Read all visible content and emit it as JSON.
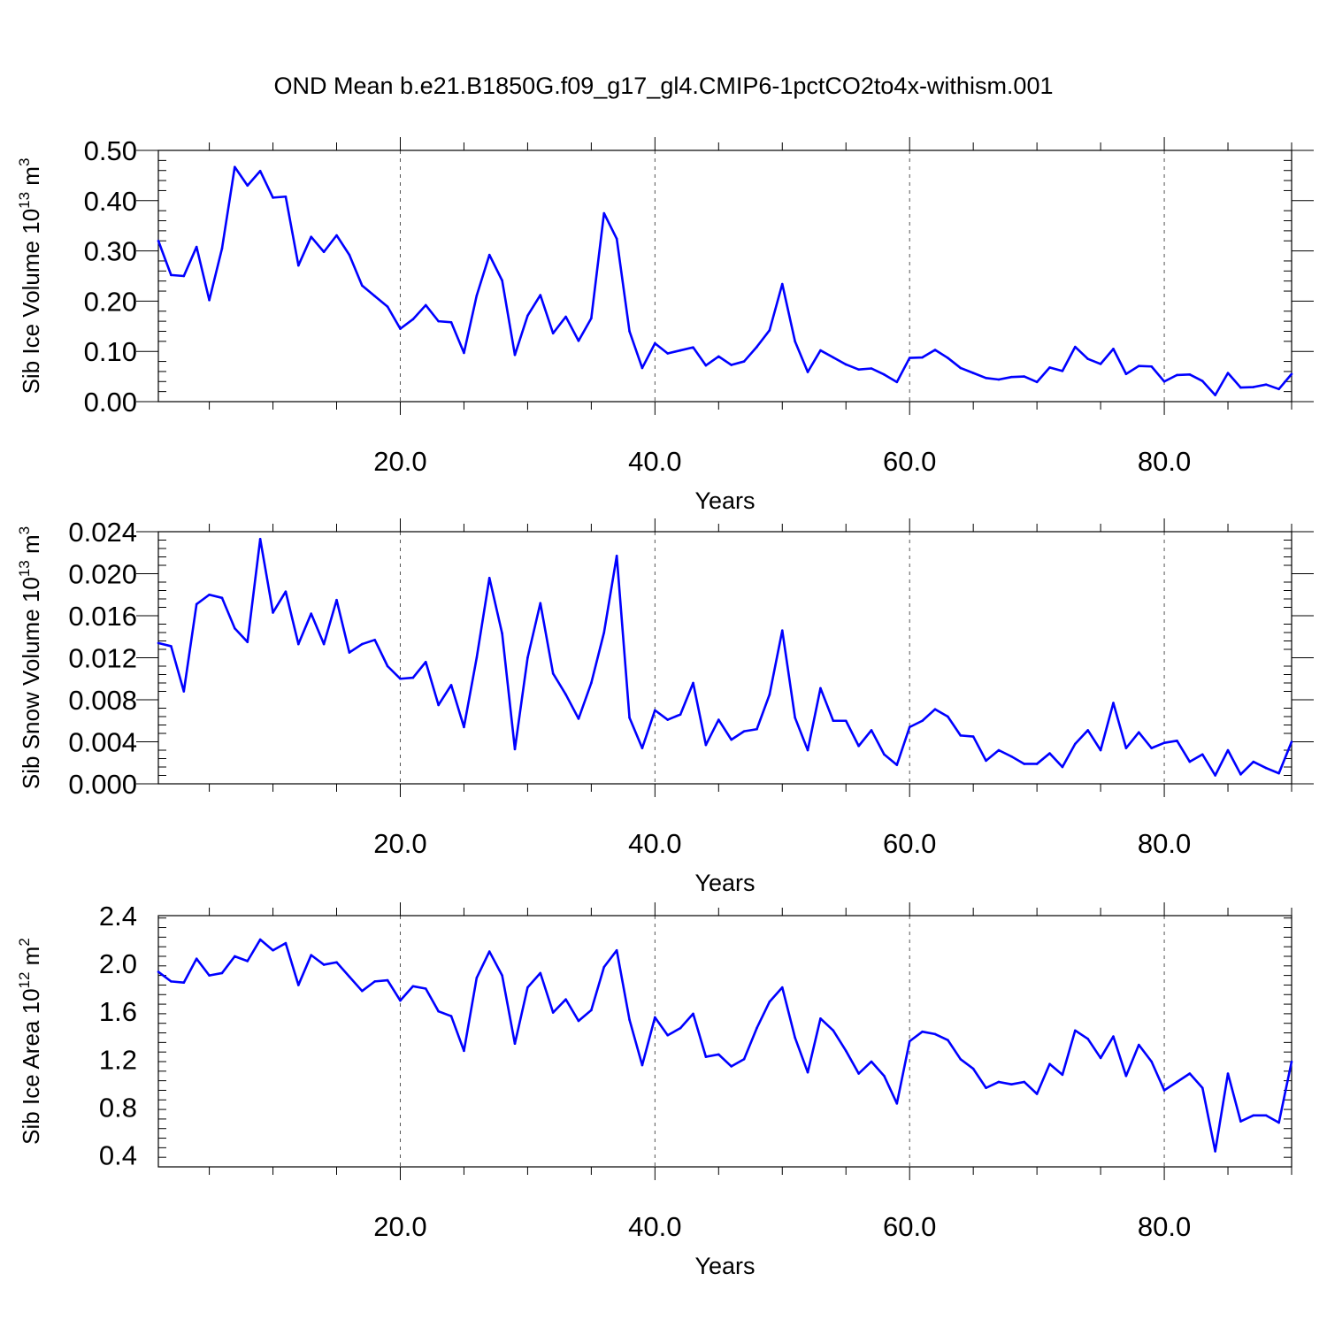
{
  "figure": {
    "title": "OND Mean b.e21.B1850G.f09_g17_gl4.CMIP6-1pctCO2to4x-withism.001"
  },
  "colors": {
    "line": "#0000ff",
    "axis": "#000000",
    "grid": "#555555"
  },
  "chart_data": [
    {
      "type": "line",
      "ylabel": {
        "main": "Sib Ice Volume 10",
        "exp": "13",
        "unit": " m",
        "unit_exp": "3"
      },
      "xlabel": "Years",
      "xlim": [
        1,
        90
      ],
      "ylim": [
        0,
        0.5
      ],
      "yticks": [
        0,
        0.1,
        0.2,
        0.3,
        0.4,
        0.5
      ],
      "ytick_labels": [
        "0.00",
        "0.10",
        "0.20",
        "0.30",
        "0.40",
        "0.50"
      ],
      "xticks": [
        20,
        40,
        60,
        80
      ],
      "xtick_labels": [
        "20.0",
        "40.0",
        "60.0",
        "80.0"
      ],
      "grid": "dashed vertical at major x ticks",
      "x": [
        1,
        2,
        3,
        4,
        5,
        6,
        7,
        8,
        9,
        10,
        11,
        12,
        13,
        14,
        15,
        16,
        17,
        18,
        19,
        20,
        21,
        22,
        23,
        24,
        25,
        26,
        27,
        28,
        29,
        30,
        31,
        32,
        33,
        34,
        35,
        36,
        37,
        38,
        39,
        40,
        41,
        42,
        43,
        44,
        45,
        46,
        47,
        48,
        49,
        50,
        51,
        52,
        53,
        54,
        55,
        56,
        57,
        58,
        59,
        60,
        61,
        62,
        63,
        64,
        65,
        66,
        67,
        68,
        69,
        70,
        71,
        72,
        73,
        74,
        75,
        76,
        77,
        78,
        79,
        80,
        81,
        82,
        83,
        84,
        85,
        86,
        87,
        88,
        89,
        90
      ],
      "values": [
        0.32,
        0.252,
        0.25,
        0.308,
        0.202,
        0.305,
        0.467,
        0.43,
        0.459,
        0.406,
        0.408,
        0.271,
        0.328,
        0.298,
        0.331,
        0.292,
        0.231,
        0.21,
        0.189,
        0.145,
        0.164,
        0.192,
        0.16,
        0.158,
        0.097,
        0.211,
        0.292,
        0.241,
        0.093,
        0.171,
        0.212,
        0.136,
        0.169,
        0.121,
        0.166,
        0.375,
        0.324,
        0.14,
        0.067,
        0.116,
        0.096,
        0.102,
        0.108,
        0.072,
        0.09,
        0.073,
        0.08,
        0.109,
        0.142,
        0.234,
        0.12,
        0.059,
        0.102,
        0.088,
        0.074,
        0.064,
        0.066,
        0.054,
        0.039,
        0.087,
        0.088,
        0.103,
        0.087,
        0.067,
        0.057,
        0.047,
        0.044,
        0.049,
        0.05,
        0.039,
        0.068,
        0.061,
        0.109,
        0.085,
        0.075,
        0.105,
        0.055,
        0.071,
        0.07,
        0.04,
        0.053,
        0.054,
        0.041,
        0.013,
        0.057,
        0.028,
        0.029,
        0.034,
        0.025,
        0.055
      ]
    },
    {
      "type": "line",
      "ylabel": {
        "main": "Sib Snow Volume 10",
        "exp": "13",
        "unit": " m",
        "unit_exp": "3"
      },
      "xlabel": "Years",
      "xlim": [
        1,
        90
      ],
      "ylim": [
        0,
        0.024
      ],
      "yticks": [
        0,
        0.004,
        0.008,
        0.012,
        0.016,
        0.02,
        0.024
      ],
      "ytick_labels": [
        "0.000",
        "0.004",
        "0.008",
        "0.012",
        "0.016",
        "0.020",
        "0.024"
      ],
      "xticks": [
        20,
        40,
        60,
        80
      ],
      "xtick_labels": [
        "20.0",
        "40.0",
        "60.0",
        "80.0"
      ],
      "grid": "dashed vertical at major x ticks",
      "x": [
        1,
        2,
        3,
        4,
        5,
        6,
        7,
        8,
        9,
        10,
        11,
        12,
        13,
        14,
        15,
        16,
        17,
        18,
        19,
        20,
        21,
        22,
        23,
        24,
        25,
        26,
        27,
        28,
        29,
        30,
        31,
        32,
        33,
        34,
        35,
        36,
        37,
        38,
        39,
        40,
        41,
        42,
        43,
        44,
        45,
        46,
        47,
        48,
        49,
        50,
        51,
        52,
        53,
        54,
        55,
        56,
        57,
        58,
        59,
        60,
        61,
        62,
        63,
        64,
        65,
        66,
        67,
        68,
        69,
        70,
        71,
        72,
        73,
        74,
        75,
        76,
        77,
        78,
        79,
        80,
        81,
        82,
        83,
        84,
        85,
        86,
        87,
        88,
        89,
        90
      ],
      "values": [
        0.0134,
        0.0131,
        0.0088,
        0.0171,
        0.018,
        0.0177,
        0.0148,
        0.0135,
        0.0233,
        0.0163,
        0.0183,
        0.0133,
        0.0162,
        0.0133,
        0.0175,
        0.0125,
        0.0133,
        0.0137,
        0.0112,
        0.01,
        0.0101,
        0.0116,
        0.0075,
        0.0094,
        0.0054,
        0.012,
        0.0196,
        0.0143,
        0.0033,
        0.012,
        0.0172,
        0.0105,
        0.0085,
        0.0062,
        0.0096,
        0.0144,
        0.0217,
        0.0063,
        0.0034,
        0.007,
        0.0061,
        0.0066,
        0.0096,
        0.0037,
        0.0061,
        0.0042,
        0.005,
        0.0052,
        0.0085,
        0.0146,
        0.0063,
        0.0032,
        0.0091,
        0.006,
        0.006,
        0.0036,
        0.0051,
        0.0028,
        0.0018,
        0.0054,
        0.006,
        0.0071,
        0.0064,
        0.0046,
        0.0045,
        0.0022,
        0.0032,
        0.0026,
        0.0019,
        0.0019,
        0.0029,
        0.0016,
        0.0038,
        0.0051,
        0.0032,
        0.0077,
        0.0034,
        0.0049,
        0.0034,
        0.0039,
        0.0041,
        0.0021,
        0.0028,
        0.0008,
        0.0032,
        0.0009,
        0.0021,
        0.0015,
        0.001,
        0.004
      ]
    },
    {
      "type": "line",
      "ylabel": {
        "main": "Sib Ice Area 10",
        "exp": "12",
        "unit": " m",
        "unit_exp": "2"
      },
      "xlabel": "Years",
      "xlim": [
        1,
        90
      ],
      "ylim": [
        0.3,
        2.4
      ],
      "yticks": [
        0.4,
        0.8,
        1.2,
        1.6,
        2.0,
        2.4
      ],
      "ytick_labels": [
        "0.4",
        "0.8",
        "1.2",
        "1.6",
        "2.0",
        "2.4"
      ],
      "xticks": [
        20,
        40,
        60,
        80
      ],
      "xtick_labels": [
        "20.0",
        "40.0",
        "60.0",
        "80.0"
      ],
      "grid": "dashed vertical at major x ticks",
      "x": [
        1,
        2,
        3,
        4,
        5,
        6,
        7,
        8,
        9,
        10,
        11,
        12,
        13,
        14,
        15,
        16,
        17,
        18,
        19,
        20,
        21,
        22,
        23,
        24,
        25,
        26,
        27,
        28,
        29,
        30,
        31,
        32,
        33,
        34,
        35,
        36,
        37,
        38,
        39,
        40,
        41,
        42,
        43,
        44,
        45,
        46,
        47,
        48,
        49,
        50,
        51,
        52,
        53,
        54,
        55,
        56,
        57,
        58,
        59,
        60,
        61,
        62,
        63,
        64,
        65,
        66,
        67,
        68,
        69,
        70,
        71,
        72,
        73,
        74,
        75,
        76,
        77,
        78,
        79,
        80,
        81,
        82,
        83,
        84,
        85,
        86,
        87,
        88,
        89,
        90
      ],
      "values": [
        1.93,
        1.85,
        1.84,
        2.04,
        1.9,
        1.92,
        2.06,
        2.02,
        2.2,
        2.11,
        2.17,
        1.82,
        2.07,
        1.99,
        2.01,
        1.89,
        1.77,
        1.85,
        1.86,
        1.69,
        1.81,
        1.79,
        1.6,
        1.56,
        1.27,
        1.88,
        2.1,
        1.9,
        1.33,
        1.8,
        1.92,
        1.59,
        1.7,
        1.52,
        1.61,
        1.97,
        2.11,
        1.53,
        1.15,
        1.55,
        1.4,
        1.46,
        1.58,
        1.22,
        1.24,
        1.14,
        1.2,
        1.46,
        1.68,
        1.8,
        1.38,
        1.09,
        1.54,
        1.44,
        1.27,
        1.08,
        1.18,
        1.06,
        0.83,
        1.35,
        1.43,
        1.41,
        1.36,
        1.2,
        1.12,
        0.96,
        1.01,
        0.99,
        1.01,
        0.91,
        1.16,
        1.07,
        1.44,
        1.37,
        1.21,
        1.39,
        1.06,
        1.32,
        1.18,
        0.94,
        1.01,
        1.08,
        0.96,
        0.43,
        1.08,
        0.68,
        0.73,
        0.73,
        0.67,
        1.18
      ]
    }
  ]
}
